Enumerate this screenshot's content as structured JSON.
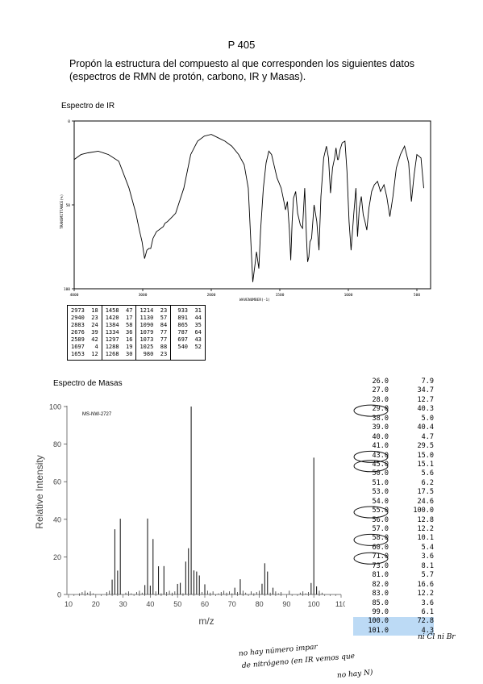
{
  "page_number": "P 405",
  "statement": {
    "line1": "Propón la estructura del compuesto al que corresponden los siguientes datos",
    "line2": "(espectros de RMN de protón, carbono, IR y Masas)."
  },
  "ir": {
    "section_title": "Espectro de IR",
    "y_axis_label": "TRANSMITTANCE(%)",
    "x_axis_label": "WAVENUMBER(-1)",
    "y_ticks": [
      "100",
      "50",
      "0"
    ],
    "x_ticks": [
      "4000",
      "3000",
      "2000",
      "1500",
      "1000",
      "500"
    ],
    "peak_table": [
      [
        [
          "2973",
          "18"
        ],
        [
          "2940",
          "23"
        ],
        [
          "2883",
          "24"
        ],
        [
          "2676",
          "39"
        ],
        [
          "2589",
          "42"
        ],
        [
          "1697",
          "4"
        ],
        [
          "1653",
          "12"
        ]
      ],
      [
        [
          "1458",
          "47"
        ],
        [
          "1420",
          "17"
        ],
        [
          "1384",
          "58"
        ],
        [
          "1334",
          "36"
        ],
        [
          "1297",
          "16"
        ],
        [
          "1288",
          "19"
        ],
        [
          "1268",
          "30"
        ]
      ],
      [
        [
          "1214",
          "23"
        ],
        [
          "1130",
          "57"
        ],
        [
          "1090",
          "84"
        ],
        [
          "1079",
          "77"
        ],
        [
          "1073",
          "77"
        ],
        [
          "1025",
          "88"
        ],
        [
          "980",
          "23"
        ]
      ],
      [
        [
          "933",
          "31"
        ],
        [
          "891",
          "44"
        ],
        [
          "865",
          "35"
        ],
        [
          "787",
          "64"
        ],
        [
          "697",
          "43"
        ],
        [
          "540",
          "52"
        ]
      ]
    ]
  },
  "ms": {
    "section_title": "Espectro de Masas",
    "chart_id": "MS-NW-2727",
    "y_axis_label": "Relative Intensity",
    "x_axis_label": "m/z",
    "y_ticks": [
      "0",
      "20",
      "40",
      "60",
      "80",
      "100"
    ],
    "x_ticks": [
      "10",
      "20",
      "30",
      "40",
      "50",
      "60",
      "70",
      "80",
      "90",
      "100",
      "110"
    ],
    "table": [
      {
        "mz": "26.0",
        "ab": "7.9"
      },
      {
        "mz": "27.0",
        "ab": "34.7"
      },
      {
        "mz": "28.0",
        "ab": "12.7"
      },
      {
        "mz": "29.0",
        "ab": "40.3"
      },
      {
        "mz": "38.0",
        "ab": "5.0"
      },
      {
        "mz": "39.0",
        "ab": "40.4"
      },
      {
        "mz": "40.0",
        "ab": "4.7"
      },
      {
        "mz": "41.0",
        "ab": "29.5"
      },
      {
        "mz": "43.0",
        "ab": "15.0"
      },
      {
        "mz": "45.0",
        "ab": "15.1"
      },
      {
        "mz": "50.0",
        "ab": "5.6"
      },
      {
        "mz": "51.0",
        "ab": "6.2"
      },
      {
        "mz": "53.0",
        "ab": "17.5"
      },
      {
        "mz": "54.0",
        "ab": "24.6"
      },
      {
        "mz": "55.0",
        "ab": "100.0"
      },
      {
        "mz": "56.0",
        "ab": "12.8"
      },
      {
        "mz": "57.0",
        "ab": "12.2"
      },
      {
        "mz": "58.0",
        "ab": "10.1"
      },
      {
        "mz": "60.0",
        "ab": "5.4"
      },
      {
        "mz": "71.0",
        "ab": "3.6"
      },
      {
        "mz": "73.0",
        "ab": "8.1"
      },
      {
        "mz": "81.0",
        "ab": "5.7"
      },
      {
        "mz": "82.0",
        "ab": "16.6"
      },
      {
        "mz": "83.0",
        "ab": "12.2"
      },
      {
        "mz": "85.0",
        "ab": "3.6"
      },
      {
        "mz": "99.0",
        "ab": "6.1"
      },
      {
        "mz": "100.0",
        "ab": "72.8"
      },
      {
        "mz": "101.0",
        "ab": "4.3"
      }
    ],
    "highlighted_rows": [
      "100.0",
      "101.0"
    ],
    "circled_rows": [
      "29.0",
      "43.0",
      "45.0",
      "55.0",
      "58.0",
      "71.0"
    ]
  },
  "handwritten_notes": {
    "ni": "ni Cl ni Br",
    "line1": "no hay número impar",
    "line2": "de nitrógeno (en IR vemos que",
    "line3": "no hay N)"
  },
  "chart_data": [
    {
      "type": "line",
      "title": "Espectro de IR",
      "xlabel": "WAVENUMBER(-1)",
      "ylabel": "TRANSMITTANCE(%)",
      "xlim": [
        4000,
        400
      ],
      "ylim": [
        0,
        100
      ],
      "x_ticks": [
        4000,
        3000,
        2000,
        1500,
        1000,
        500
      ],
      "y_ticks": [
        0,
        50,
        100
      ],
      "series": [
        {
          "x": [
            4000,
            3900,
            3800,
            3650,
            3500,
            3350,
            3200,
            3100,
            3050,
            3010,
            2973,
            2940,
            2910,
            2883,
            2850,
            2800,
            2700,
            2676,
            2640,
            2589,
            2520,
            2400,
            2300,
            2200,
            2100,
            2000,
            1950,
            1900,
            1850,
            1800,
            1760,
            1730,
            1715,
            1697,
            1680,
            1670,
            1653,
            1640,
            1620,
            1600,
            1580,
            1560,
            1540,
            1520,
            1490,
            1470,
            1458,
            1445,
            1430,
            1420,
            1410,
            1400,
            1384,
            1370,
            1350,
            1334,
            1318,
            1305,
            1297,
            1288,
            1280,
            1268,
            1250,
            1230,
            1214,
            1200,
            1180,
            1160,
            1145,
            1130,
            1115,
            1100,
            1090,
            1079,
            1073,
            1060,
            1045,
            1025,
            1010,
            995,
            980,
            960,
            945,
            933,
            920,
            905,
            891,
            878,
            865,
            850,
            830,
            810,
            787,
            765,
            740,
            720,
            697,
            675,
            650,
            620,
            590,
            560,
            540,
            520,
            500,
            470,
            450
          ],
          "y": [
            77,
            80,
            81,
            82,
            80,
            76,
            60,
            45,
            35,
            28,
            18,
            23,
            24,
            24,
            30,
            34,
            37,
            39,
            40,
            42,
            45,
            60,
            80,
            88,
            91,
            92,
            90,
            88,
            85,
            80,
            74,
            60,
            35,
            4,
            15,
            22,
            12,
            35,
            60,
            75,
            82,
            80,
            73,
            66,
            60,
            52,
            47,
            52,
            35,
            17,
            40,
            54,
            58,
            45,
            38,
            36,
            60,
            30,
            16,
            19,
            28,
            30,
            50,
            40,
            23,
            55,
            78,
            85,
            78,
            57,
            72,
            78,
            84,
            77,
            77,
            83,
            87,
            88,
            70,
            40,
            23,
            45,
            60,
            31,
            48,
            55,
            44,
            40,
            35,
            48,
            58,
            62,
            64,
            58,
            62,
            55,
            43,
            55,
            72,
            80,
            85,
            75,
            52,
            68,
            80,
            78,
            60
          ]
        }
      ]
    },
    {
      "type": "bar",
      "title": "MS-NW-2727",
      "xlabel": "m/z",
      "ylabel": "Relative Intensity",
      "xlim": [
        10,
        110
      ],
      "ylim": [
        0,
        100
      ],
      "x": [
        26,
        27,
        28,
        29,
        38,
        39,
        40,
        41,
        43,
        45,
        50,
        51,
        53,
        54,
        55,
        56,
        57,
        58,
        60,
        71,
        73,
        81,
        82,
        83,
        85,
        99,
        100,
        101
      ],
      "values": [
        7.9,
        34.7,
        12.7,
        40.3,
        5.0,
        40.4,
        4.7,
        29.5,
        15.0,
        15.1,
        5.6,
        6.2,
        17.5,
        24.6,
        100.0,
        12.8,
        12.2,
        10.1,
        5.4,
        3.6,
        8.1,
        5.7,
        16.6,
        12.2,
        3.6,
        6.1,
        72.8,
        4.3
      ]
    }
  ]
}
